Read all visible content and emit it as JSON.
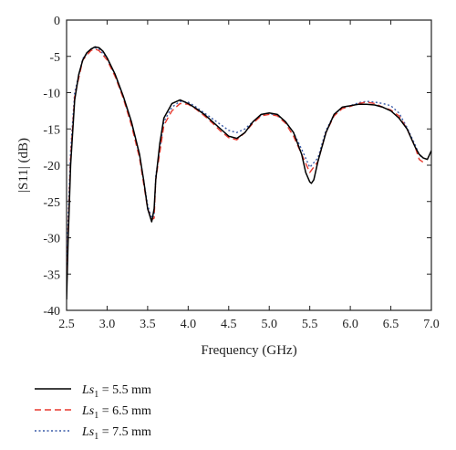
{
  "chart_data": {
    "type": "line",
    "xlabel": "Frequency (GHz)",
    "ylabel": "|S11| (dB)",
    "xlim": [
      2.5,
      7.0
    ],
    "ylim": [
      -40,
      0
    ],
    "xticks": [
      "2.5",
      "3.0",
      "3.5",
      "4.0",
      "4.5",
      "5.0",
      "5.5",
      "6.0",
      "6.5",
      "7.0"
    ],
    "yticks": [
      "0",
      "-5",
      "-10",
      "-15",
      "-20",
      "-25",
      "-30",
      "-35",
      "-40"
    ],
    "grid": false,
    "legend_position": "bottom-left",
    "series": [
      {
        "name": "Ls1 = 5.5 mm",
        "legend": {
          "var": "Ls",
          "sub": "1",
          "rest": " = 5.5 mm"
        },
        "color": "#000000",
        "style": "solid",
        "x": [
          2.5,
          2.52,
          2.55,
          2.6,
          2.65,
          2.7,
          2.75,
          2.8,
          2.85,
          2.9,
          2.95,
          3.0,
          3.1,
          3.2,
          3.3,
          3.4,
          3.45,
          3.5,
          3.55,
          3.58,
          3.6,
          3.65,
          3.7,
          3.8,
          3.9,
          4.0,
          4.1,
          4.2,
          4.3,
          4.4,
          4.5,
          4.6,
          4.7,
          4.8,
          4.9,
          5.0,
          5.1,
          5.2,
          5.3,
          5.4,
          5.45,
          5.5,
          5.52,
          5.55,
          5.6,
          5.7,
          5.8,
          5.9,
          6.0,
          6.1,
          6.2,
          6.3,
          6.4,
          6.5,
          6.6,
          6.7,
          6.8,
          6.85,
          6.9,
          6.95,
          7.0
        ],
        "y": [
          -38.5,
          -30,
          -20,
          -11,
          -7.5,
          -5.5,
          -4.5,
          -4.0,
          -3.7,
          -3.8,
          -4.3,
          -5.2,
          -7.5,
          -10.5,
          -14,
          -18.5,
          -22,
          -26,
          -27.8,
          -26,
          -22,
          -17,
          -13.5,
          -11.5,
          -11.0,
          -11.5,
          -12.2,
          -13.0,
          -14.0,
          -15.0,
          -16.0,
          -16.3,
          -15.5,
          -14.0,
          -13.0,
          -12.8,
          -13.0,
          -14.0,
          -15.5,
          -18.5,
          -21,
          -22.3,
          -22.5,
          -22,
          -19.5,
          -15.5,
          -13.0,
          -12.0,
          -11.8,
          -11.6,
          -11.6,
          -11.7,
          -12.0,
          -12.5,
          -13.5,
          -15.0,
          -17.5,
          -18.5,
          -19.0,
          -19.2,
          -18.0
        ]
      },
      {
        "name": "Ls1 = 6.5 mm",
        "legend": {
          "var": "Ls",
          "sub": "1",
          "rest": " = 6.5 mm"
        },
        "color": "#e8392e",
        "style": "dashed",
        "x": [
          2.5,
          2.52,
          2.55,
          2.6,
          2.7,
          2.8,
          2.85,
          2.9,
          3.0,
          3.1,
          3.2,
          3.3,
          3.4,
          3.5,
          3.55,
          3.58,
          3.6,
          3.7,
          3.8,
          3.9,
          4.0,
          4.1,
          4.2,
          4.3,
          4.4,
          4.5,
          4.6,
          4.7,
          4.8,
          4.9,
          5.0,
          5.1,
          5.2,
          5.3,
          5.4,
          5.5,
          5.6,
          5.7,
          5.8,
          5.9,
          6.0,
          6.1,
          6.2,
          6.3,
          6.4,
          6.5,
          6.6,
          6.7,
          6.8,
          6.85,
          6.9
        ],
        "y": [
          -37.5,
          -29,
          -19,
          -10.5,
          -5.5,
          -4.2,
          -4.0,
          -4.2,
          -5.5,
          -7.8,
          -10.8,
          -14.5,
          -19,
          -26,
          -27.5,
          -27.3,
          -22,
          -14.5,
          -12.5,
          -11.5,
          -11.6,
          -12.3,
          -13.2,
          -14.2,
          -15.3,
          -16.2,
          -16.5,
          -15.5,
          -14.2,
          -13.2,
          -13.0,
          -13.2,
          -14.2,
          -16.0,
          -18.5,
          -21.0,
          -19.5,
          -15.5,
          -13.2,
          -12.2,
          -11.9,
          -11.5,
          -11.3,
          -11.5,
          -12.0,
          -12.4,
          -13.2,
          -15.0,
          -17.5,
          -19.2,
          -19.6
        ]
      },
      {
        "name": "Ls1 = 7.5 mm",
        "legend": {
          "var": "Ls",
          "sub": "1",
          "rest": " = 7.5 mm"
        },
        "color": "#3a5ba8",
        "style": "dotted",
        "x": [
          2.5,
          2.52,
          2.55,
          2.6,
          2.7,
          2.8,
          2.85,
          2.9,
          3.0,
          3.1,
          3.2,
          3.3,
          3.4,
          3.5,
          3.55,
          3.58,
          3.6,
          3.7,
          3.8,
          3.9,
          4.0,
          4.1,
          4.2,
          4.3,
          4.4,
          4.5,
          4.6,
          4.7,
          4.8,
          4.9,
          5.0,
          5.1,
          5.2,
          5.3,
          5.4,
          5.5,
          5.6,
          5.7,
          5.8,
          5.9,
          6.0,
          6.1,
          6.2,
          6.3,
          6.4,
          6.5,
          6.6,
          6.7,
          6.8,
          6.85,
          6.9
        ],
        "y": [
          -34,
          -27,
          -18,
          -10.0,
          -5.3,
          -4.0,
          -3.8,
          -4.0,
          -5.3,
          -7.6,
          -10.6,
          -14.2,
          -18.6,
          -25.5,
          -27.3,
          -27.0,
          -21.5,
          -14.0,
          -12.0,
          -11.2,
          -11.3,
          -12.0,
          -12.8,
          -13.6,
          -14.4,
          -15.2,
          -15.5,
          -15.0,
          -14.0,
          -13.1,
          -12.9,
          -13.1,
          -14.0,
          -15.5,
          -17.8,
          -20.3,
          -19.0,
          -15.2,
          -13.0,
          -12.1,
          -11.8,
          -11.4,
          -11.2,
          -11.3,
          -11.5,
          -11.8,
          -12.8,
          -14.8,
          -17.2,
          -18.6,
          -19.0
        ]
      }
    ]
  }
}
